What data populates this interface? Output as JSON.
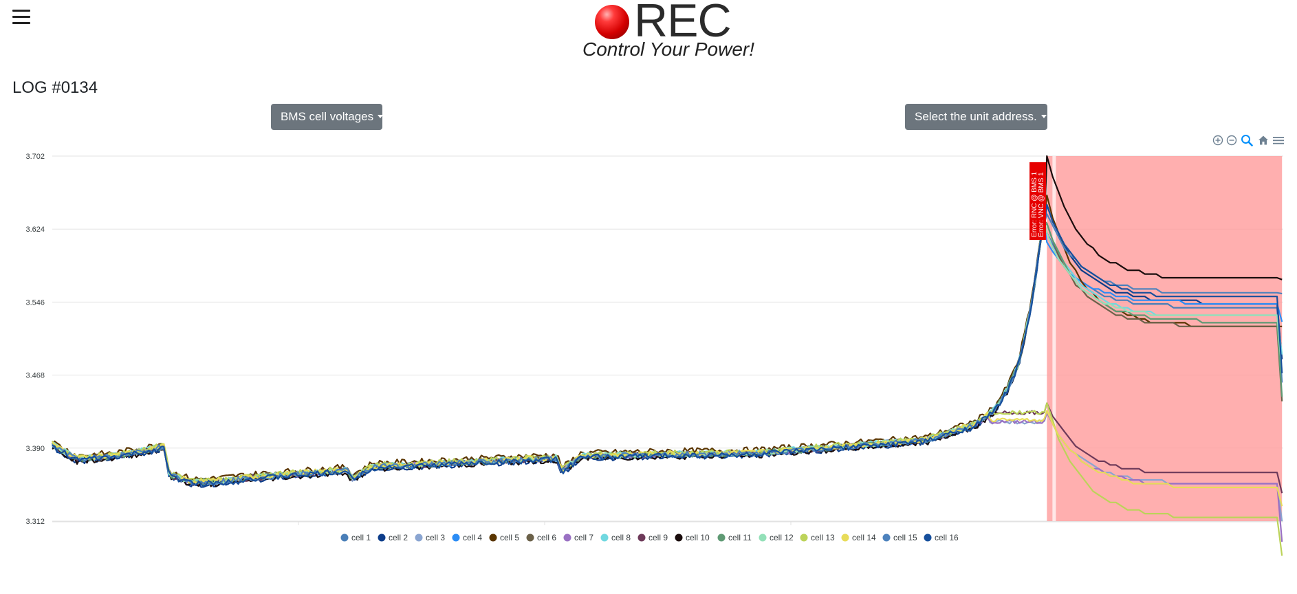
{
  "header": {
    "menu_icon": "hamburger-menu-icon",
    "logo_text": "REC",
    "tagline": "Control Your Power!"
  },
  "log_title": "LOG #0134",
  "dropdowns": {
    "data_type": "BMS cell voltages",
    "unit_address": "Select the unit address."
  },
  "toolbar": {
    "icons": [
      "zoom-in-icon",
      "zoom-out-icon",
      "selection-zoom-icon",
      "reset-home-icon",
      "menu-icon"
    ]
  },
  "colors": {
    "accent_button": "#6c757d",
    "alarm_band": "#ff9999",
    "annotation_bg": "#e60000"
  },
  "chart_data": {
    "type": "line",
    "y_ticks": [
      "3.702",
      "3.624",
      "3.546",
      "3.468",
      "3.390",
      "3.312"
    ],
    "ylim": [
      3.312,
      3.702
    ],
    "xlim": [
      0,
      1
    ],
    "grid": true,
    "legend_placement": "bottom",
    "annotations": [
      "Error: RNC @ BMS 1",
      "Error: VNC @ BMS 1"
    ],
    "shaded_region": {
      "x_start": 0.808,
      "x_end": 0.999
    },
    "base_profile": [
      [
        0.0,
        3.393
      ],
      [
        0.02,
        3.378
      ],
      [
        0.05,
        3.381
      ],
      [
        0.08,
        3.388
      ],
      [
        0.091,
        3.392
      ],
      [
        0.095,
        3.361
      ],
      [
        0.115,
        3.353
      ],
      [
        0.135,
        3.354
      ],
      [
        0.16,
        3.358
      ],
      [
        0.2,
        3.362
      ],
      [
        0.24,
        3.366
      ],
      [
        0.243,
        3.357
      ],
      [
        0.26,
        3.37
      ],
      [
        0.3,
        3.372
      ],
      [
        0.36,
        3.376
      ],
      [
        0.41,
        3.379
      ],
      [
        0.414,
        3.365
      ],
      [
        0.43,
        3.381
      ],
      [
        0.5,
        3.383
      ],
      [
        0.57,
        3.384
      ],
      [
        0.61,
        3.388
      ],
      [
        0.66,
        3.393
      ],
      [
        0.71,
        3.398
      ],
      [
        0.75,
        3.415
      ],
      [
        0.765,
        3.43
      ],
      [
        0.775,
        3.45
      ],
      [
        0.785,
        3.48
      ],
      [
        0.795,
        3.54
      ],
      [
        0.805,
        3.63
      ]
    ],
    "series": [
      {
        "name": "cell 1",
        "color": "#4a7fb8",
        "offset": 0.0,
        "peak": 3.62,
        "end": 3.54
      },
      {
        "name": "cell 2",
        "color": "#0d3d8a",
        "offset": -0.002,
        "peak": 3.65,
        "end": 3.545
      },
      {
        "name": "cell 3",
        "color": "#8aa5d1",
        "offset": 0.001,
        "peak": 3.428,
        "end": 3.352
      },
      {
        "name": "cell 4",
        "color": "#2b8cf5",
        "offset": 0.0,
        "peak": 3.61,
        "end": 3.545
      },
      {
        "name": "cell 5",
        "color": "#5a3500",
        "offset": 0.004,
        "peak": 3.66,
        "end": 3.52
      },
      {
        "name": "cell 6",
        "color": "#6b6149",
        "offset": 0.001,
        "peak": 3.63,
        "end": 3.52
      },
      {
        "name": "cell 7",
        "color": "#9a71c3",
        "offset": 0.0,
        "peak": 3.428,
        "end": 3.35
      },
      {
        "name": "cell 8",
        "color": "#70d8e0",
        "offset": 0.001,
        "peak": 3.63,
        "end": 3.53
      },
      {
        "name": "cell 9",
        "color": "#6e3a5a",
        "offset": 0.0,
        "peak": 3.438,
        "end": 3.362
      },
      {
        "name": "cell 10",
        "color": "#1a0d0d",
        "offset": -0.002,
        "peak": 3.702,
        "end": 3.57
      },
      {
        "name": "cell 11",
        "color": "#5f9a74",
        "offset": 0.0,
        "peak": 3.63,
        "end": 3.525
      },
      {
        "name": "cell 12",
        "color": "#93e0b8",
        "offset": 0.001,
        "peak": 3.62,
        "end": 3.53
      },
      {
        "name": "cell 13",
        "color": "#bcd35a",
        "offset": 0.002,
        "peak": 3.438,
        "end": 3.315
      },
      {
        "name": "cell 14",
        "color": "#e8dc5a",
        "offset": 0.001,
        "peak": 3.43,
        "end": 3.348
      },
      {
        "name": "cell 15",
        "color": "#4d82bd",
        "offset": 0.0,
        "peak": 3.64,
        "end": 3.555
      },
      {
        "name": "cell 16",
        "color": "#164f9c",
        "offset": -0.001,
        "peak": 3.65,
        "end": 3.55
      }
    ]
  }
}
